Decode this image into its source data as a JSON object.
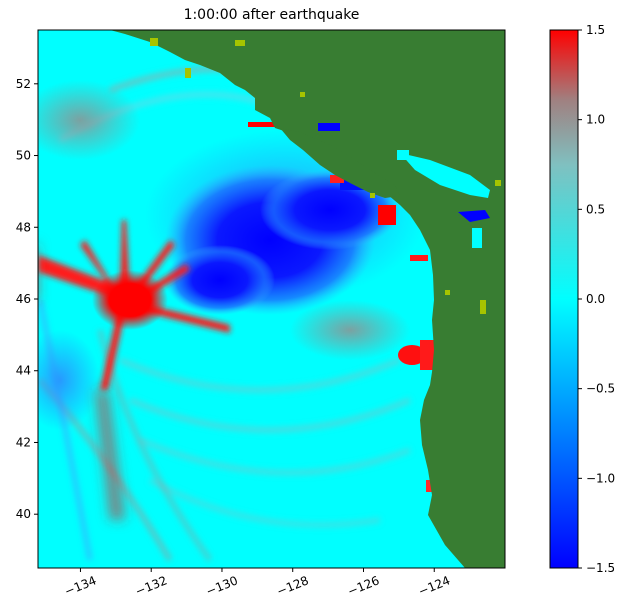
{
  "chart_data": {
    "type": "heatmap",
    "title": "1:00:00 after earthquake",
    "xlim": [
      -135.2,
      -122.0
    ],
    "ylim": [
      38.5,
      53.5
    ],
    "xticks": [
      -134,
      -132,
      -130,
      -128,
      -126,
      -124
    ],
    "xtick_labels": [
      "−134",
      "−132",
      "−130",
      "−128",
      "−126",
      "−124"
    ],
    "yticks": [
      40,
      42,
      44,
      46,
      48,
      50,
      52
    ],
    "ytick_labels": [
      "40",
      "42",
      "44",
      "46",
      "48",
      "50",
      "52"
    ],
    "colorbar": {
      "range": [
        -1.5,
        1.5
      ],
      "ticks": [
        1.5,
        1.0,
        0.5,
        0.0,
        -0.5,
        -1.0,
        -1.5
      ],
      "tick_labels": [
        "1.5",
        "1.0",
        "0.5",
        "0.0",
        "−0.5",
        "−1.0",
        "−1.5"
      ],
      "colors": [
        "#0000ff",
        "#00ffff",
        "#ff0000"
      ]
    },
    "land_color": "#387d32",
    "ocean_base_color": "#00ffff",
    "features": [
      {
        "name": "positive-peak-near-source",
        "lon": -132.7,
        "lat": 45.6,
        "value": 1.5
      },
      {
        "name": "negative-trough-offshore",
        "lon": -129.6,
        "lat": 47.3,
        "value": -1.5
      },
      {
        "name": "coastal-positive-oregon",
        "lon": -124.7,
        "lat": 44.4,
        "value": 1.5
      }
    ]
  }
}
